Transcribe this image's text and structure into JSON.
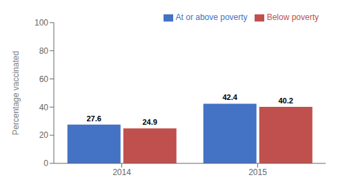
{
  "chart_data": {
    "type": "bar",
    "categories": [
      "2014",
      "2015"
    ],
    "series": [
      {
        "name": "At or above poverty",
        "color": "#4472C4",
        "values": [
          27.6,
          42.4
        ]
      },
      {
        "name": "Below poverty",
        "color": "#C0504D",
        "values": [
          24.9,
          40.2
        ]
      }
    ],
    "ylabel": "Percentage vaccinated",
    "ylim": [
      0,
      100
    ],
    "yticks": [
      0,
      20,
      40,
      60,
      80,
      100
    ],
    "legend": "upper right",
    "data_labels": true,
    "grid": false
  }
}
